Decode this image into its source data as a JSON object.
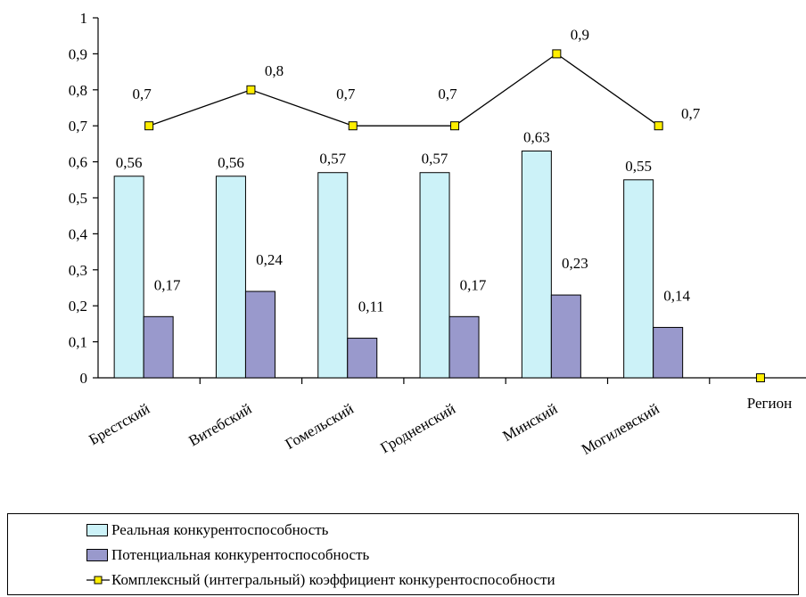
{
  "chart_data": {
    "type": "bar",
    "categories": [
      "Брестский",
      "Витебский",
      "Гомельский",
      "Гродненский",
      "Минский",
      "Могилевский",
      "Регион"
    ],
    "ylim": [
      0,
      1
    ],
    "yticks": [
      "0",
      "0,1",
      "0,2",
      "0,3",
      "0,4",
      "0,5",
      "0,6",
      "0,7",
      "0,8",
      "0,9",
      "1"
    ],
    "grid": false,
    "legend_position": "bottom",
    "series": [
      {
        "name": "Реальная конкурентоспособность",
        "kind": "bar",
        "color": "#ccf2f8",
        "values": [
          0.56,
          0.56,
          0.57,
          0.57,
          0.63,
          0.55,
          null
        ],
        "labels": [
          "0,56",
          "0,56",
          "0,57",
          "0,57",
          "0,63",
          "0,55",
          ""
        ]
      },
      {
        "name": "Потенциальная конкурентоспособность",
        "kind": "bar",
        "color": "#9999cc",
        "values": [
          0.17,
          0.24,
          0.11,
          0.17,
          0.23,
          0.14,
          null
        ],
        "labels": [
          "0,17",
          "0,24",
          "0,11",
          "0,17",
          "0,23",
          "0,14",
          ""
        ]
      },
      {
        "name": "Комплексный (интегральный) коэффициент конкурентоспособности",
        "kind": "line",
        "color": "#000000",
        "marker_color": "#ffee00",
        "values": [
          0.7,
          0.8,
          0.7,
          0.7,
          0.9,
          0.7,
          0
        ],
        "labels": [
          "0,7",
          "0,8",
          "0,7",
          "0,7",
          "0,9",
          "0,7",
          ""
        ]
      }
    ]
  }
}
